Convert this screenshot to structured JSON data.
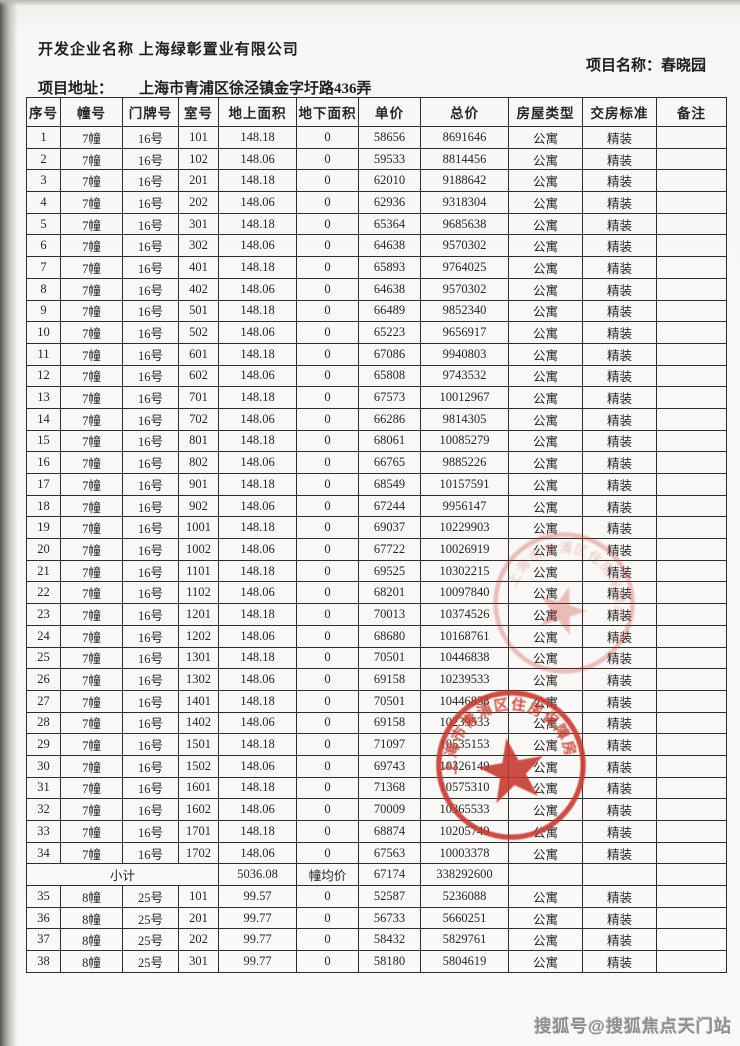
{
  "page": {
    "developer": "开发企业名称 上海绿彰置业有限公司",
    "project_name_label": "项目名称：",
    "project_name": "春晓园",
    "address_label": "项目地址：",
    "address": "上海市青浦区徐泾镇金字圩路436弄",
    "watermark": "搜狐号@搜狐焦点天门站"
  },
  "stamp": {
    "arc_text": "上海市青浦区住房保障房屋管理局",
    "color": "#c4372e"
  },
  "table": {
    "columns": [
      "序号",
      "幢号",
      "门牌号",
      "室号",
      "地上面积",
      "地下面积",
      "单价",
      "总价",
      "房屋类型",
      "交房标准",
      "备注"
    ],
    "building7_rows": [
      [
        "1",
        "7幢",
        "16号",
        "101",
        "148.18",
        "0",
        "58656",
        "8691646",
        "公寓",
        "精装",
        ""
      ],
      [
        "2",
        "7幢",
        "16号",
        "102",
        "148.06",
        "0",
        "59533",
        "8814456",
        "公寓",
        "精装",
        ""
      ],
      [
        "3",
        "7幢",
        "16号",
        "201",
        "148.18",
        "0",
        "62010",
        "9188642",
        "公寓",
        "精装",
        ""
      ],
      [
        "4",
        "7幢",
        "16号",
        "202",
        "148.06",
        "0",
        "62936",
        "9318304",
        "公寓",
        "精装",
        ""
      ],
      [
        "5",
        "7幢",
        "16号",
        "301",
        "148.18",
        "0",
        "65364",
        "9685638",
        "公寓",
        "精装",
        ""
      ],
      [
        "6",
        "7幢",
        "16号",
        "302",
        "148.06",
        "0",
        "64638",
        "9570302",
        "公寓",
        "精装",
        ""
      ],
      [
        "7",
        "7幢",
        "16号",
        "401",
        "148.18",
        "0",
        "65893",
        "9764025",
        "公寓",
        "精装",
        ""
      ],
      [
        "8",
        "7幢",
        "16号",
        "402",
        "148.06",
        "0",
        "64638",
        "9570302",
        "公寓",
        "精装",
        ""
      ],
      [
        "9",
        "7幢",
        "16号",
        "501",
        "148.18",
        "0",
        "66489",
        "9852340",
        "公寓",
        "精装",
        ""
      ],
      [
        "10",
        "7幢",
        "16号",
        "502",
        "148.06",
        "0",
        "65223",
        "9656917",
        "公寓",
        "精装",
        ""
      ],
      [
        "11",
        "7幢",
        "16号",
        "601",
        "148.18",
        "0",
        "67086",
        "9940803",
        "公寓",
        "精装",
        ""
      ],
      [
        "12",
        "7幢",
        "16号",
        "602",
        "148.06",
        "0",
        "65808",
        "9743532",
        "公寓",
        "精装",
        ""
      ],
      [
        "13",
        "7幢",
        "16号",
        "701",
        "148.18",
        "0",
        "67573",
        "10012967",
        "公寓",
        "精装",
        ""
      ],
      [
        "14",
        "7幢",
        "16号",
        "702",
        "148.06",
        "0",
        "66286",
        "9814305",
        "公寓",
        "精装",
        ""
      ],
      [
        "15",
        "7幢",
        "16号",
        "801",
        "148.18",
        "0",
        "68061",
        "10085279",
        "公寓",
        "精装",
        ""
      ],
      [
        "16",
        "7幢",
        "16号",
        "802",
        "148.06",
        "0",
        "66765",
        "9885226",
        "公寓",
        "精装",
        ""
      ],
      [
        "17",
        "7幢",
        "16号",
        "901",
        "148.18",
        "0",
        "68549",
        "10157591",
        "公寓",
        "精装",
        ""
      ],
      [
        "18",
        "7幢",
        "16号",
        "902",
        "148.06",
        "0",
        "67244",
        "9956147",
        "公寓",
        "精装",
        ""
      ],
      [
        "19",
        "7幢",
        "16号",
        "1001",
        "148.18",
        "0",
        "69037",
        "10229903",
        "公寓",
        "精装",
        ""
      ],
      [
        "20",
        "7幢",
        "16号",
        "1002",
        "148.06",
        "0",
        "67722",
        "10026919",
        "公寓",
        "精装",
        ""
      ],
      [
        "21",
        "7幢",
        "16号",
        "1101",
        "148.18",
        "0",
        "69525",
        "10302215",
        "公寓",
        "精装",
        ""
      ],
      [
        "22",
        "7幢",
        "16号",
        "1102",
        "148.06",
        "0",
        "68201",
        "10097840",
        "公寓",
        "精装",
        ""
      ],
      [
        "23",
        "7幢",
        "16号",
        "1201",
        "148.18",
        "0",
        "70013",
        "10374526",
        "公寓",
        "精装",
        ""
      ],
      [
        "24",
        "7幢",
        "16号",
        "1202",
        "148.06",
        "0",
        "68680",
        "10168761",
        "公寓",
        "精装",
        ""
      ],
      [
        "25",
        "7幢",
        "16号",
        "1301",
        "148.18",
        "0",
        "70501",
        "10446838",
        "公寓",
        "精装",
        ""
      ],
      [
        "26",
        "7幢",
        "16号",
        "1302",
        "148.06",
        "0",
        "69158",
        "10239533",
        "公寓",
        "精装",
        ""
      ],
      [
        "27",
        "7幢",
        "16号",
        "1401",
        "148.18",
        "0",
        "70501",
        "10446838",
        "公寓",
        "精装",
        ""
      ],
      [
        "28",
        "7幢",
        "16号",
        "1402",
        "148.06",
        "0",
        "69158",
        "10239533",
        "公寓",
        "精装",
        ""
      ],
      [
        "29",
        "7幢",
        "16号",
        "1501",
        "148.18",
        "0",
        "71097",
        "10535153",
        "公寓",
        "精装",
        ""
      ],
      [
        "30",
        "7幢",
        "16号",
        "1502",
        "148.06",
        "0",
        "69743",
        "10326149",
        "公寓",
        "精装",
        ""
      ],
      [
        "31",
        "7幢",
        "16号",
        "1601",
        "148.18",
        "0",
        "71368",
        "10575310",
        "公寓",
        "精装",
        ""
      ],
      [
        "32",
        "7幢",
        "16号",
        "1602",
        "148.06",
        "0",
        "70009",
        "10365533",
        "公寓",
        "精装",
        ""
      ],
      [
        "33",
        "7幢",
        "16号",
        "1701",
        "148.18",
        "0",
        "68874",
        "10205749",
        "公寓",
        "精装",
        ""
      ],
      [
        "34",
        "7幢",
        "16号",
        "1702",
        "148.06",
        "0",
        "67563",
        "10003378",
        "公寓",
        "精装",
        ""
      ]
    ],
    "subtotal": {
      "label": "小计",
      "area": "5036.08",
      "avg_label": "幢均价",
      "unit_price": "67174",
      "total_price": "338292600"
    },
    "building8_rows": [
      [
        "35",
        "8幢",
        "25号",
        "101",
        "99.57",
        "0",
        "52587",
        "5236088",
        "公寓",
        "精装",
        ""
      ],
      [
        "36",
        "8幢",
        "25号",
        "201",
        "99.77",
        "0",
        "56733",
        "5660251",
        "公寓",
        "精装",
        ""
      ],
      [
        "37",
        "8幢",
        "25号",
        "202",
        "99.77",
        "0",
        "58432",
        "5829761",
        "公寓",
        "精装",
        ""
      ],
      [
        "38",
        "8幢",
        "25号",
        "301",
        "99.77",
        "0",
        "58180",
        "5804619",
        "公寓",
        "精装",
        ""
      ]
    ]
  }
}
